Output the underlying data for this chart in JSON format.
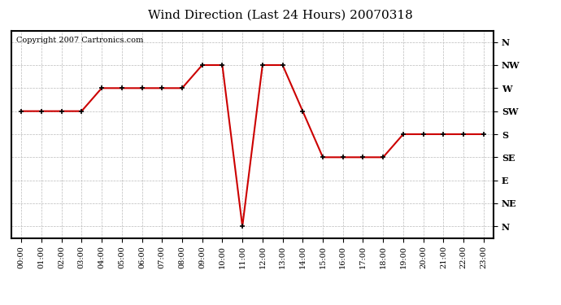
{
  "title": "Wind Direction (Last 24 Hours) 20070318",
  "copyright": "Copyright 2007 Cartronics.com",
  "background_color": "#ffffff",
  "plot_bg_color": "#ffffff",
  "line_color": "#cc0000",
  "grid_color": "#bbbbbb",
  "hours": [
    0,
    1,
    2,
    3,
    4,
    5,
    6,
    7,
    8,
    9,
    10,
    11,
    12,
    13,
    14,
    15,
    16,
    17,
    18,
    19,
    20,
    21,
    22,
    23
  ],
  "y_values": [
    5,
    5,
    5,
    5,
    6,
    6,
    6,
    6,
    6,
    7,
    7,
    0,
    7,
    7,
    5,
    3,
    3,
    3,
    3,
    4,
    4,
    4,
    4,
    4
  ],
  "ytick_values": [
    8,
    7,
    6,
    5,
    4,
    3,
    2,
    1,
    0
  ],
  "ytick_labels": [
    "N",
    "NW",
    "W",
    "SW",
    "S",
    "SE",
    "E",
    "NE",
    "N"
  ],
  "title_fontsize": 11,
  "copyright_fontsize": 7,
  "tick_fontsize": 8
}
